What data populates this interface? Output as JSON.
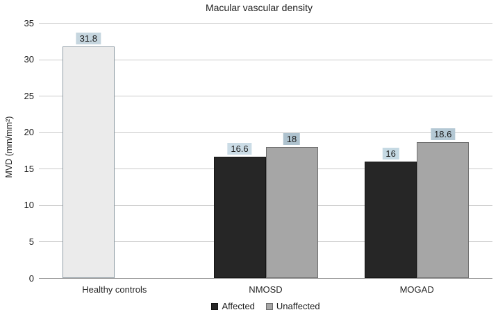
{
  "chart_data": {
    "type": "bar",
    "title": "Macular vascular density",
    "xlabel": "",
    "ylabel": "MVD (mm/mm²)",
    "ylim": [
      0,
      35
    ],
    "yticks": [
      0,
      5,
      10,
      15,
      20,
      25,
      30,
      35
    ],
    "grid": true,
    "legend_position": "bottom",
    "categories": [
      "Healthy controls",
      "NMOSD",
      "MOGAD"
    ],
    "series": [
      {
        "name": "Affected",
        "values": [
          null,
          16.6,
          16
        ]
      },
      {
        "name": "Unaffected",
        "values": [
          null,
          18,
          18.6
        ]
      }
    ],
    "single_bars": [
      {
        "category": "Healthy controls",
        "value": 31.8
      }
    ],
    "groups": [
      {
        "category": "Healthy controls",
        "bars": [
          {
            "series": "Healthy controls",
            "slot": 0,
            "value": 31.8,
            "label": "31.8",
            "fill": "#ebebeb",
            "stroke": "#8f9ca4",
            "label_bg": "#c6d6df"
          }
        ]
      },
      {
        "category": "NMOSD",
        "bars": [
          {
            "series": "Affected",
            "slot": 0,
            "value": 16.6,
            "label": "16.6",
            "fill": "#262626",
            "stroke": "#141414",
            "label_bg": "#cbdce6"
          },
          {
            "series": "Unaffected",
            "slot": 1,
            "value": 18,
            "label": "18",
            "fill": "#a6a6a6",
            "stroke": "#6e6e6e",
            "label_bg": "#aec2ce"
          }
        ]
      },
      {
        "category": "MOGAD",
        "bars": [
          {
            "series": "Affected",
            "slot": 0,
            "value": 16,
            "label": "16",
            "fill": "#262626",
            "stroke": "#141414",
            "label_bg": "#c5d9e3"
          },
          {
            "series": "Unaffected",
            "slot": 1,
            "value": 18.6,
            "label": "18.6",
            "fill": "#a6a6a6",
            "stroke": "#6e6e6e",
            "label_bg": "#b4c8d4"
          }
        ]
      }
    ],
    "legend": [
      {
        "label": "Affected",
        "fill": "#262626",
        "stroke": "#141414"
      },
      {
        "label": "Unaffected",
        "fill": "#a6a6a6",
        "stroke": "#6e6e6e"
      }
    ],
    "colors": {
      "grid": "#c9c9c9",
      "baseline": "#9a9a9a",
      "text": "#1d1d1d",
      "background": "#ffffff"
    }
  }
}
